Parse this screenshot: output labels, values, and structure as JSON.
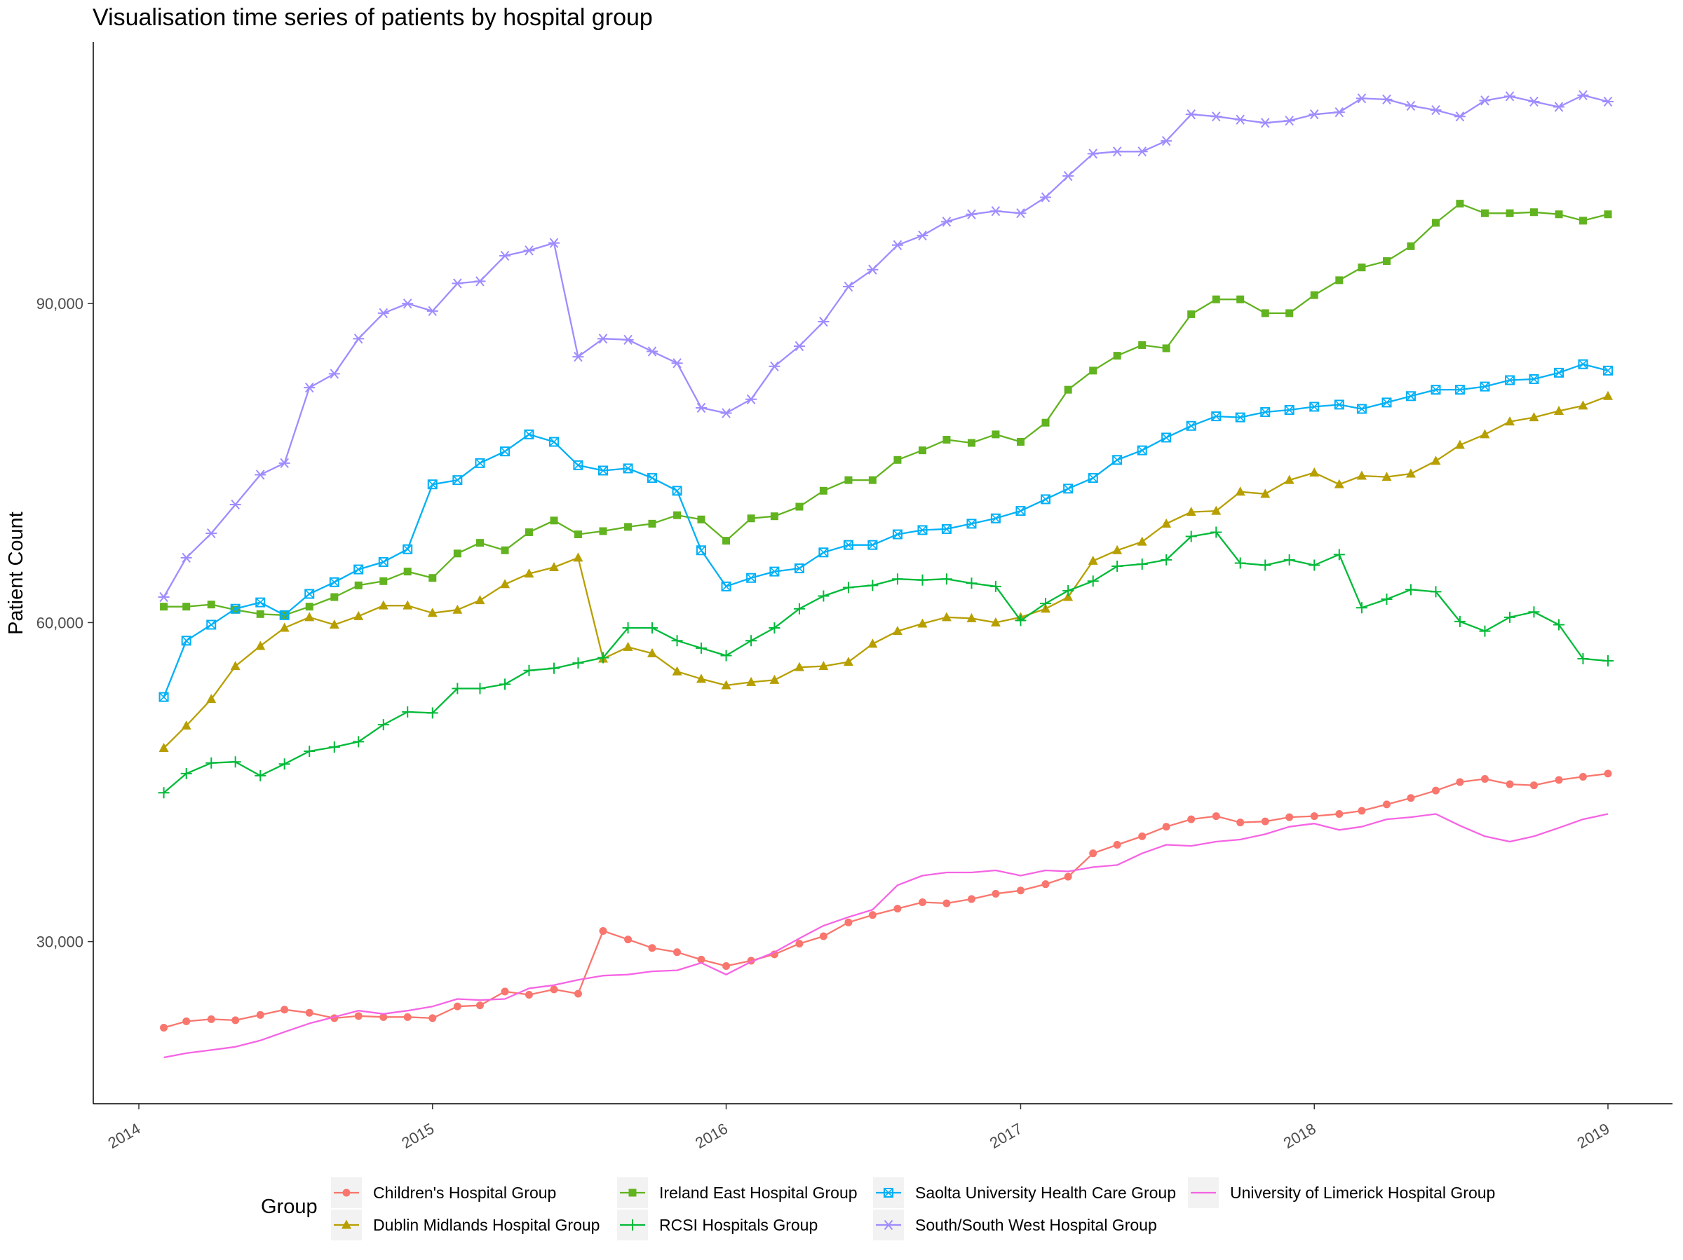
{
  "chart_data": {
    "type": "line",
    "title": "Visualisation time series of patients by hospital group",
    "xlabel": "",
    "ylabel": "Patient Count",
    "x_ticks": [
      "2014",
      "2015",
      "2016",
      "2017",
      "2018",
      "2019"
    ],
    "y_ticks": [
      30000,
      60000,
      90000
    ],
    "y_tick_labels": [
      "30,000",
      "60,000",
      "90,000"
    ],
    "ylim": [
      14750,
      114600
    ],
    "xlim": [
      "2014-01-01",
      "2019-01-01"
    ],
    "grid": false,
    "legend": {
      "title": "Group",
      "position": "bottom"
    },
    "x": [
      "2014-02",
      "2014-03",
      "2014-04",
      "2014-05",
      "2014-06",
      "2014-07",
      "2014-08",
      "2014-09",
      "2014-10",
      "2014-11",
      "2014-12",
      "2015-01",
      "2015-02",
      "2015-03",
      "2015-04",
      "2015-05",
      "2015-06",
      "2015-07",
      "2015-08",
      "2015-09",
      "2015-10",
      "2015-11",
      "2015-12",
      "2016-01",
      "2016-02",
      "2016-03",
      "2016-04",
      "2016-05",
      "2016-06",
      "2016-07",
      "2016-08",
      "2016-09",
      "2016-10",
      "2016-11",
      "2016-12",
      "2017-01",
      "2017-02",
      "2017-03",
      "2017-04",
      "2017-05",
      "2017-06",
      "2017-07",
      "2017-08",
      "2017-09",
      "2017-10",
      "2017-11",
      "2017-12",
      "2018-01",
      "2018-02",
      "2018-03",
      "2018-04",
      "2018-05",
      "2018-06",
      "2018-07",
      "2018-08",
      "2018-09",
      "2018-10",
      "2018-11",
      "2018-12",
      "2019-01"
    ],
    "series": [
      {
        "name": "Children's Hospital Group",
        "color": "#f8766d",
        "marker": "circle",
        "values": [
          21900,
          22500,
          22700,
          22600,
          23100,
          23600,
          23300,
          22800,
          23000,
          22900,
          22900,
          22800,
          23900,
          24000,
          25300,
          25000,
          25500,
          25100,
          31000,
          30200,
          29400,
          29000,
          28300,
          27700,
          28200,
          28800,
          29800,
          30500,
          31800,
          32500,
          33100,
          33700,
          33600,
          34000,
          34500,
          34800,
          35400,
          36100,
          38300,
          39100,
          39900,
          40800,
          41500,
          41800,
          41200,
          41300,
          41700,
          41800,
          42000,
          42300,
          42900,
          43500,
          44200,
          45000,
          45300,
          44800,
          44700,
          45200,
          45500,
          45800
        ]
      },
      {
        "name": "Dublin Midlands Hospital Group",
        "color": "#b79f00",
        "marker": "triangle",
        "values": [
          48200,
          50300,
          52800,
          55900,
          57800,
          59500,
          60500,
          59800,
          60600,
          61600,
          61600,
          60900,
          61200,
          62100,
          63600,
          64600,
          65200,
          66100,
          56600,
          57700,
          57100,
          55400,
          54700,
          54100,
          54400,
          54600,
          55800,
          55900,
          56300,
          58000,
          59200,
          59900,
          60500,
          60400,
          60000,
          60500,
          61300,
          62400,
          65800,
          66800,
          67600,
          69300,
          70400,
          70500,
          72300,
          72100,
          73400,
          74100,
          73000,
          73800,
          73700,
          74000,
          75200,
          76700,
          77700,
          78900,
          79300,
          79900,
          80400,
          81300
        ]
      },
      {
        "name": "Ireland East Hospital Group",
        "color": "#61b31f",
        "marker": "square",
        "values": [
          61500,
          61500,
          61700,
          61200,
          60800,
          60700,
          61500,
          62400,
          63500,
          63900,
          64800,
          64200,
          66500,
          67500,
          66800,
          68500,
          69600,
          68300,
          68600,
          69000,
          69300,
          70100,
          69700,
          67700,
          69800,
          70000,
          70900,
          72400,
          73400,
          73400,
          75300,
          76200,
          77200,
          76900,
          77700,
          77000,
          78800,
          81900,
          83700,
          85100,
          86100,
          85800,
          89000,
          90400,
          90400,
          89100,
          89100,
          90800,
          92200,
          93400,
          94000,
          95400,
          97600,
          99400,
          98500,
          98500,
          98600,
          98400,
          97800,
          98400
        ]
      },
      {
        "name": "RCSI  Hospitals Group",
        "color": "#00ba38",
        "marker": "plus",
        "values": [
          44000,
          45800,
          46800,
          46900,
          45600,
          46700,
          47900,
          48300,
          48800,
          50400,
          51600,
          51500,
          53800,
          53800,
          54200,
          55500,
          55700,
          56200,
          56700,
          59500,
          59500,
          58300,
          57600,
          56900,
          58300,
          59500,
          61300,
          62500,
          63300,
          63500,
          64100,
          64000,
          64100,
          63700,
          63400,
          60200,
          61800,
          63000,
          63900,
          65300,
          65500,
          65900,
          68100,
          68500,
          65600,
          65400,
          65900,
          65400,
          66400,
          61400,
          62200,
          63100,
          62900,
          60100,
          59200,
          60500,
          61000,
          59800,
          56600,
          56400
        ]
      },
      {
        "name": "Saolta University Health Care Group",
        "color": "#00b0f6",
        "marker": "square-x",
        "values": [
          53000,
          58300,
          59800,
          61300,
          61900,
          60700,
          62700,
          63800,
          65000,
          65700,
          66900,
          73000,
          73400,
          75000,
          76100,
          77700,
          77000,
          74800,
          74300,
          74500,
          73600,
          72400,
          66800,
          63400,
          64200,
          64800,
          65100,
          66600,
          67300,
          67300,
          68300,
          68700,
          68800,
          69300,
          69800,
          70500,
          71600,
          72600,
          73600,
          75300,
          76200,
          77400,
          78500,
          79400,
          79300,
          79800,
          80000,
          80300,
          80500,
          80100,
          80700,
          81300,
          81900,
          81900,
          82200,
          82800,
          82900,
          83500,
          84300,
          83700
        ]
      },
      {
        "name": "South/South West Hospital Group",
        "color": "#9f8cff",
        "marker": "asterisk",
        "values": [
          62400,
          66100,
          68400,
          71100,
          73900,
          75000,
          82100,
          83400,
          86700,
          89100,
          90000,
          89300,
          91900,
          92100,
          94500,
          95000,
          95700,
          85000,
          86700,
          86600,
          85500,
          84400,
          80200,
          79700,
          81000,
          84100,
          86000,
          88300,
          91600,
          93200,
          95500,
          96400,
          97700,
          98400,
          98700,
          98500,
          100000,
          102000,
          104100,
          104300,
          104300,
          105300,
          107800,
          107600,
          107300,
          107000,
          107200,
          107800,
          108000,
          109300,
          109200,
          108600,
          108200,
          107600,
          109100,
          109500,
          109000,
          108500,
          109600,
          109000
        ]
      },
      {
        "name": "University of Limerick Hospital Group",
        "color": "#f564e3",
        "marker": "none",
        "values": [
          19100,
          19500,
          19800,
          20100,
          20700,
          21500,
          22300,
          22900,
          23500,
          23200,
          23500,
          23900,
          24600,
          24500,
          24600,
          25600,
          25900,
          26400,
          26800,
          26900,
          27200,
          27300,
          28000,
          26900,
          28100,
          29000,
          30300,
          31500,
          32300,
          33000,
          35300,
          36200,
          36500,
          36500,
          36700,
          36200,
          36700,
          36600,
          37000,
          37200,
          38300,
          39100,
          39000,
          39400,
          39600,
          40100,
          40800,
          41100,
          40500,
          40800,
          41500,
          41700,
          42000,
          40900,
          39900,
          39400,
          39900,
          40700,
          41500,
          42000
        ]
      }
    ]
  },
  "legend_rows": [
    [
      "Children's Hospital Group",
      "Ireland East Hospital Group",
      "Saolta University Health Care Group",
      "University of Limerick Hospital Group"
    ],
    [
      "Dublin Midlands Hospital Group",
      "RCSI  Hospitals Group",
      "South/South West Hospital Group"
    ]
  ]
}
